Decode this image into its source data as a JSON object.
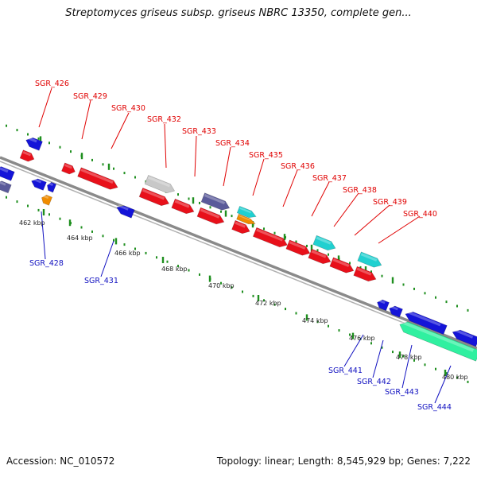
{
  "header": {
    "title": "Streptomyces griseus subsp. griseus NBRC 13350, complete gen..."
  },
  "footer": {
    "accession": "Accession: NC_010572",
    "summary": "Topology: linear; Length: 8,545,929 bp; Genes: 7,222"
  },
  "colors": {
    "backbone": "#8a8a8a",
    "dots": "#1f8f1f",
    "forward_gene": "#e8101a",
    "reverse_gene": "#1414d8",
    "rrna_like": "#20d0d0",
    "orange_feature": "#f08c00",
    "gray_feature": "#c8c8c8",
    "slate_feature": "#5a5a9a",
    "teal_feature": "#30f0a0",
    "label_forward": "#e00000",
    "label_reverse": "#1010c0"
  },
  "scale_labels": [
    "462 kbp",
    "464 kbp",
    "466 kbp",
    "468 kbp",
    "470 kbp",
    "472 kbp",
    "474 kbp",
    "476 kbp",
    "478 kbp",
    "480 kbp"
  ],
  "forward_gene_labels": [
    "SGR_426",
    "SGR_429",
    "SGR_430",
    "SGR_432",
    "SGR_433",
    "SGR_434",
    "SGR_435",
    "SGR_436",
    "SGR_437",
    "SGR_438",
    "SGR_439",
    "SGR_440"
  ],
  "reverse_gene_labels": [
    "SGR_428",
    "SGR_431",
    "SGR_441",
    "SGR_442",
    "SGR_443",
    "SGR_444"
  ]
}
